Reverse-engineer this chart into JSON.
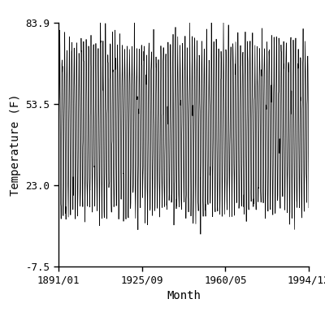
{
  "title": "",
  "xlabel": "Month",
  "ylabel": "Temperature (F)",
  "ylim": [
    -7.5,
    83.9
  ],
  "yticks": [
    -7.5,
    23.0,
    53.5,
    83.9
  ],
  "xtick_specs": [
    [
      1891,
      1,
      "1891/01"
    ],
    [
      1925,
      9,
      "1925/09"
    ],
    [
      1960,
      5,
      "1960/05"
    ],
    [
      1994,
      12,
      "1994/12"
    ]
  ],
  "line_color": "#000000",
  "line_width": 0.5,
  "bg_color": "#ffffff",
  "monthly_means": [
    14.0,
    19.0,
    31.0,
    46.0,
    57.0,
    67.0,
    74.0,
    72.0,
    61.0,
    48.0,
    31.0,
    18.0
  ],
  "noise_std": 4.5,
  "seed": 42,
  "start_year": 1891,
  "end_year": 1994,
  "end_month": 12,
  "figsize": [
    4.0,
    4.0
  ],
  "dpi": 100,
  "label_fontsize": 10,
  "tick_fontsize": 9
}
